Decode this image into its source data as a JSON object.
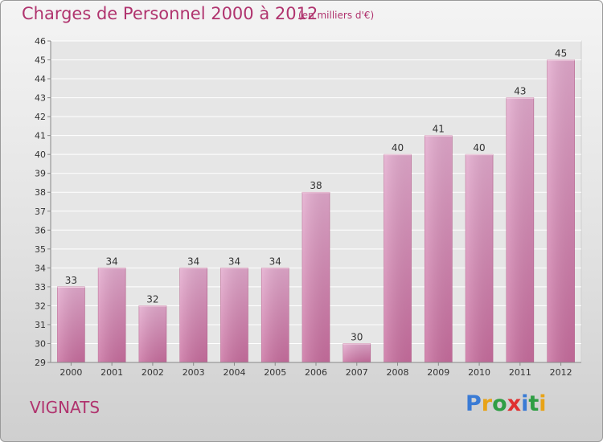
{
  "header": {
    "title": "Charges de Personnel 2000 à 2012",
    "subtitle": "(en milliers d'€)"
  },
  "footer": {
    "commune": "VIGNATS",
    "brand": "Proxiti",
    "brand_colors": [
      "#3a7bd5",
      "#e8a317",
      "#2f9e44",
      "#e03131",
      "#3a7bd5",
      "#2f9e44",
      "#e8a317"
    ]
  },
  "chart_data": {
    "type": "bar",
    "categories": [
      "2000",
      "2001",
      "2002",
      "2003",
      "2004",
      "2005",
      "2006",
      "2007",
      "2008",
      "2009",
      "2010",
      "2011",
      "2012"
    ],
    "values": [
      33,
      34,
      32,
      34,
      34,
      34,
      38,
      30,
      40,
      41,
      40,
      43,
      45
    ],
    "data_labels": [
      "33",
      "34",
      "32",
      "34",
      "34",
      "34",
      "38",
      "30",
      "40",
      "41",
      "40",
      "43",
      "45"
    ],
    "title": "Charges de Personnel 2000 à 2012",
    "ylim": [
      29,
      46
    ],
    "y_ticks": [
      "29",
      "30",
      "31",
      "32",
      "33",
      "34",
      "35",
      "36",
      "37",
      "38",
      "39",
      "40",
      "41",
      "42",
      "43",
      "44",
      "45",
      "46"
    ],
    "grid": true,
    "legend": "none",
    "bar_color": "#c96e9f",
    "bar_color_light": "#e3a9cd"
  }
}
